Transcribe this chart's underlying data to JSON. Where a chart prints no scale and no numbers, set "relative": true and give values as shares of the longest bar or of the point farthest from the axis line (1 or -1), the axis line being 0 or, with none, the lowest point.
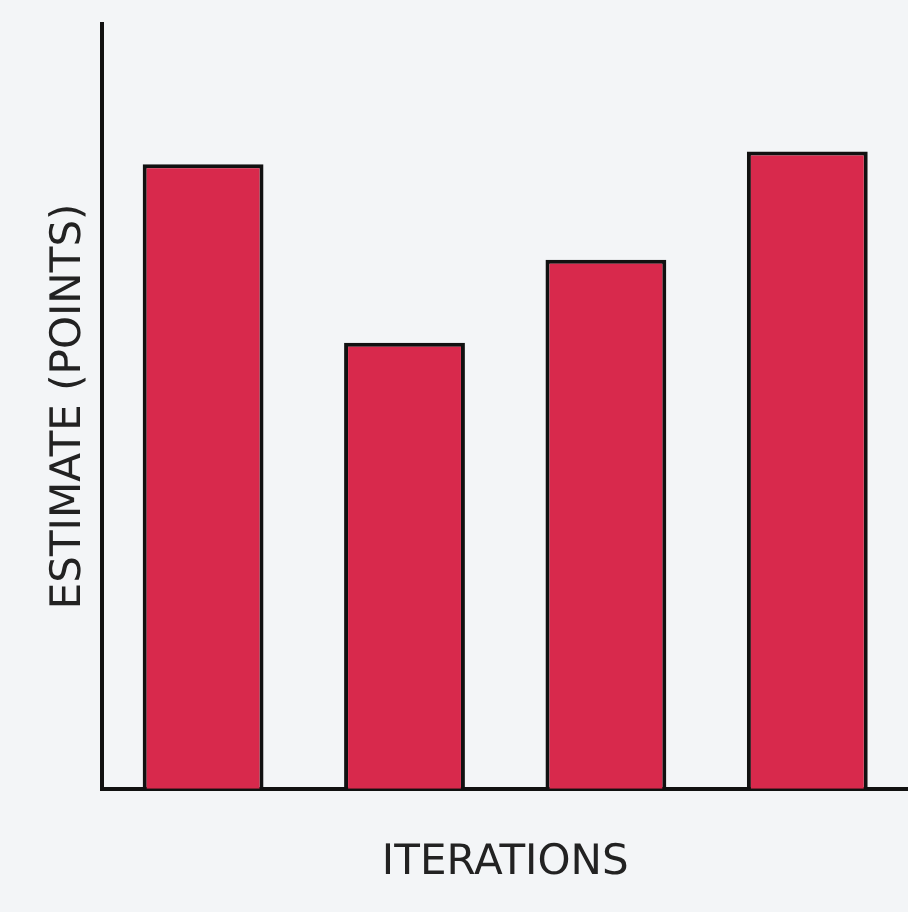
{
  "chart_data": {
    "type": "bar",
    "relative": true,
    "xlabel": "ITERATIONS",
    "ylabel": "ESTIMATE (POINTS)",
    "categories": [
      null,
      null,
      null,
      null
    ],
    "values": [
      0.98,
      0.7,
      0.83,
      1
    ],
    "color": "#d8294c",
    "grid": false,
    "legend": false
  }
}
